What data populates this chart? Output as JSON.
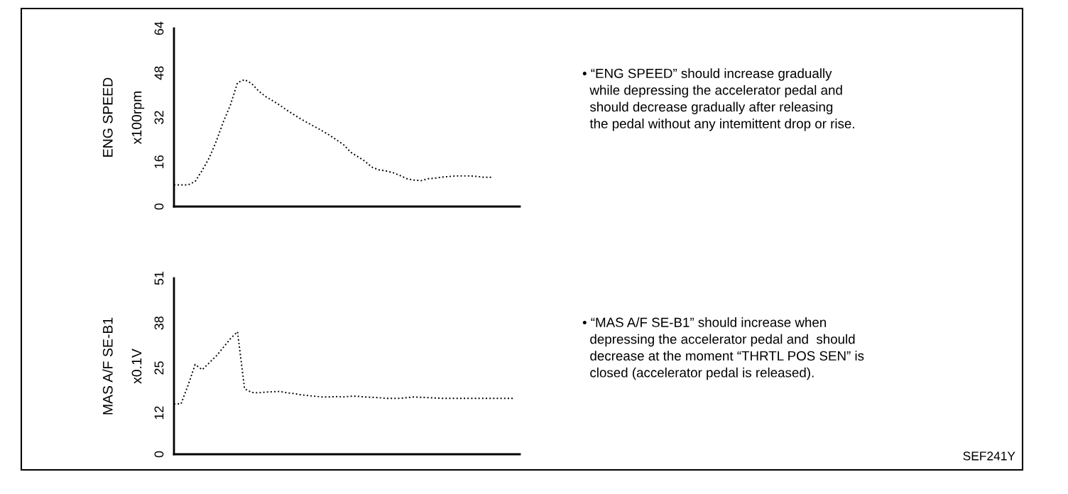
{
  "chart_data": [
    {
      "type": "line",
      "ylabel": "ENG SPEED\nx100rpm",
      "categories": [
        null,
        null,
        null,
        null,
        null,
        null,
        null,
        null,
        null,
        null,
        null,
        null,
        null,
        null,
        null,
        null,
        null,
        null,
        null,
        null,
        null,
        null,
        null,
        null,
        null,
        null,
        null,
        null,
        null,
        null,
        null,
        null,
        null,
        null,
        null,
        null,
        null,
        null,
        null,
        null,
        null,
        null,
        null,
        null,
        null,
        null,
        null,
        null,
        null,
        null
      ],
      "series": [
        {
          "color": "#000000",
          "values": [
            7.8,
            7.8,
            7.8,
            9,
            13,
            17.5,
            23.5,
            30.5,
            36.5,
            44.5,
            45.6,
            44.2,
            41.5,
            39.5,
            38,
            36.4,
            34.6,
            33,
            31.4,
            30,
            28.6,
            27.2,
            25.7,
            24,
            22.3,
            19.6,
            18,
            16.4,
            14.2,
            13.2,
            12.8,
            12.2,
            11.2,
            10,
            9.5,
            9.3,
            10,
            10.2,
            10.6,
            10.8,
            11,
            11,
            11,
            10.8,
            10.5,
            10.5,
            null,
            null,
            null,
            null
          ]
        }
      ],
      "ylim": [
        0,
        64
      ],
      "yticks": [
        0,
        16,
        32,
        48,
        64
      ],
      "tick_labels": "y",
      "grid": false,
      "line_style": "dotted",
      "annotations": [
        "• “ENG SPEED” should increase gradually\n  while depressing the accelerator pedal and\n  should decrease gradually after releasing\n  the pedal without any intemittent drop or rise."
      ]
    },
    {
      "type": "line",
      "ylabel": "MAS A/F SE-B1\nx0.1V",
      "categories": [
        null,
        null,
        null,
        null,
        null,
        null,
        null,
        null,
        null,
        null,
        null,
        null,
        null,
        null,
        null,
        null,
        null,
        null,
        null,
        null,
        null,
        null,
        null,
        null,
        null,
        null,
        null,
        null,
        null,
        null,
        null,
        null,
        null,
        null,
        null,
        null,
        null,
        null,
        null,
        null,
        null,
        null,
        null,
        null,
        null,
        null,
        null,
        null,
        null,
        null
      ],
      "series": [
        {
          "color": "#000000",
          "values": [
            14.6,
            14.6,
            20,
            26,
            24.5,
            26.5,
            28.5,
            31,
            33.5,
            35.5,
            19,
            17.9,
            17.8,
            18,
            18.1,
            18.2,
            17.8,
            17.6,
            17.2,
            17,
            16.8,
            16.6,
            16.6,
            16.7,
            16.6,
            16.8,
            16.8,
            16.6,
            16.5,
            16.4,
            16.2,
            16.2,
            16.2,
            16.4,
            16.6,
            16.5,
            16.4,
            16.3,
            16.2,
            16.2,
            16.2,
            16.2,
            16.2,
            16.2,
            16.2,
            16.2,
            16.2,
            16.2,
            16.2,
            null
          ]
        }
      ],
      "ylim": [
        0,
        51
      ],
      "yticks": [
        0,
        12,
        25,
        38,
        51
      ],
      "tick_labels": "y",
      "grid": false,
      "line_style": "dotted",
      "annotations": [
        "• “MAS A/F SE-B1” should increase when\n  depressing the accelerator pedal and  should\n  decrease at the moment “THRTL POS SEN” is\n  closed (accelerator pedal is released).",
        "SEF241Y"
      ]
    }
  ]
}
